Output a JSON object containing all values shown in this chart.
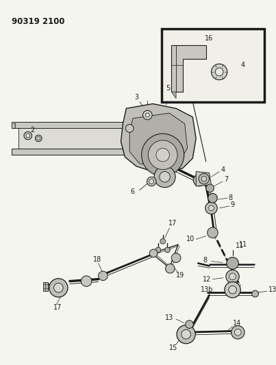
{
  "title": "90319 2100",
  "bg_color": "#f5f5f0",
  "line_color": "#1a1a1a",
  "title_fontsize": 8.5,
  "figsize": [
    4.03,
    5.33
  ],
  "dpi": 100
}
